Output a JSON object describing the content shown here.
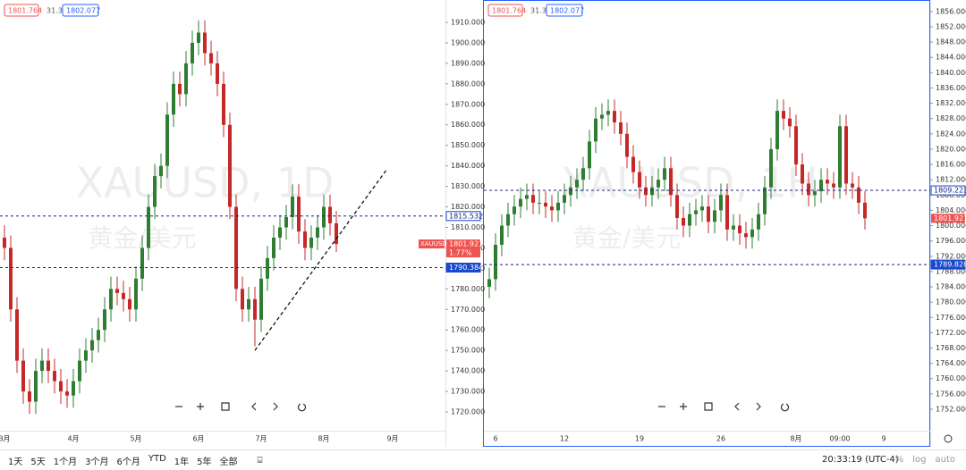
{
  "chart_data": [
    {
      "type": "candlestick",
      "title": "XAUUSD, 1D",
      "subtitle": "黄金/美元",
      "header_values": [
        1801.764,
        31.3,
        1802.077
      ],
      "symbol": "XAUUSD",
      "change": "1.77%",
      "last": 1801.921,
      "up_color": "#2e7d32",
      "down_color": "#c62828",
      "categories": [
        "3月",
        null,
        null,
        null,
        null,
        null,
        null,
        null,
        null,
        null,
        null,
        "4月",
        null,
        null,
        null,
        null,
        null,
        null,
        null,
        null,
        null,
        "5月",
        null,
        null,
        null,
        null,
        null,
        null,
        null,
        null,
        null,
        "6月",
        null,
        null,
        null,
        null,
        null,
        null,
        null,
        null,
        null,
        "7月",
        null,
        null,
        null,
        null,
        null,
        null,
        null,
        null,
        null,
        "8月",
        null,
        null,
        null,
        null,
        null,
        null,
        null,
        null,
        null,
        null,
        "9月",
        null
      ],
      "ohlc": [
        [
          1805,
          1811,
          1794,
          1800
        ],
        [
          1800,
          1806,
          1764,
          1770
        ],
        [
          1770,
          1776,
          1739,
          1745
        ],
        [
          1745,
          1751,
          1724,
          1730
        ],
        [
          1730,
          1736,
          1719,
          1725
        ],
        [
          1725,
          1746,
          1719,
          1740
        ],
        [
          1740,
          1751,
          1734,
          1745
        ],
        [
          1745,
          1751,
          1734,
          1740
        ],
        [
          1740,
          1746,
          1729,
          1735
        ],
        [
          1735,
          1741,
          1724,
          1730
        ],
        [
          1730,
          1736,
          1722,
          1728
        ],
        [
          1728,
          1741,
          1722,
          1735
        ],
        [
          1735,
          1751,
          1729,
          1745
        ],
        [
          1745,
          1756,
          1739,
          1750
        ],
        [
          1750,
          1761,
          1744,
          1755
        ],
        [
          1755,
          1766,
          1749,
          1760
        ],
        [
          1760,
          1776,
          1754,
          1770
        ],
        [
          1770,
          1786,
          1764,
          1780
        ],
        [
          1780,
          1786,
          1772,
          1778
        ],
        [
          1778,
          1784,
          1769,
          1775
        ],
        [
          1775,
          1781,
          1764,
          1770
        ],
        [
          1770,
          1791,
          1764,
          1785
        ],
        [
          1785,
          1806,
          1779,
          1800
        ],
        [
          1800,
          1826,
          1794,
          1820
        ],
        [
          1820,
          1841,
          1814,
          1835
        ],
        [
          1835,
          1846,
          1829,
          1840
        ],
        [
          1840,
          1871,
          1834,
          1865
        ],
        [
          1865,
          1886,
          1859,
          1880
        ],
        [
          1880,
          1886,
          1869,
          1875
        ],
        [
          1875,
          1896,
          1869,
          1890
        ],
        [
          1890,
          1906,
          1884,
          1900
        ],
        [
          1900,
          1911,
          1894,
          1905
        ],
        [
          1905,
          1911,
          1889,
          1895
        ],
        [
          1895,
          1901,
          1884,
          1890
        ],
        [
          1890,
          1896,
          1874,
          1880
        ],
        [
          1880,
          1886,
          1854,
          1860
        ],
        [
          1860,
          1866,
          1814,
          1820
        ],
        [
          1820,
          1826,
          1774,
          1780
        ],
        [
          1780,
          1786,
          1764,
          1770
        ],
        [
          1770,
          1781,
          1764,
          1775
        ],
        [
          1775,
          1781,
          1752,
          1765
        ],
        [
          1765,
          1791,
          1759,
          1785
        ],
        [
          1785,
          1801,
          1779,
          1795
        ],
        [
          1795,
          1811,
          1789,
          1805
        ],
        [
          1805,
          1816,
          1799,
          1810
        ],
        [
          1810,
          1821,
          1804,
          1815
        ],
        [
          1815,
          1831,
          1809,
          1825
        ],
        [
          1825,
          1831,
          1802,
          1808
        ],
        [
          1808,
          1814,
          1794,
          1800
        ],
        [
          1800,
          1811,
          1794,
          1805
        ],
        [
          1805,
          1816,
          1799,
          1810
        ],
        [
          1810,
          1826,
          1804,
          1820
        ],
        [
          1820,
          1826,
          1806,
          1812
        ],
        [
          1812,
          1818,
          1798,
          1801.921
        ],
        null,
        null,
        null,
        null,
        null,
        null,
        null,
        null,
        null,
        null
      ],
      "ylim": [
        1710.85,
        1920.9
      ],
      "yticks": [
        {
          "value": 1720,
          "label": "1720.000"
        },
        {
          "value": 1730,
          "label": "1730.000"
        },
        {
          "value": 1740,
          "label": "1740.000"
        },
        {
          "value": 1750,
          "label": "1750.000"
        },
        {
          "value": 1760,
          "label": "1760.000"
        },
        {
          "value": 1770,
          "label": "1770.000"
        },
        {
          "value": 1780,
          "label": "1780.000"
        },
        {
          "value": 1790,
          "label": "1790.000"
        },
        {
          "value": 1800,
          "label": "1800.000"
        },
        {
          "value": 1810,
          "label": "1810.000"
        },
        {
          "value": 1820,
          "label": "1820.000"
        },
        {
          "value": 1830,
          "label": "1830.000"
        },
        {
          "value": 1840,
          "label": "1840.000"
        },
        {
          "value": 1850,
          "label": "1850.000"
        },
        {
          "value": 1860,
          "label": "1860.000"
        },
        {
          "value": 1870,
          "label": "1870.000"
        },
        {
          "value": 1880,
          "label": "1880.000"
        },
        {
          "value": 1890,
          "label": "1890.000"
        },
        {
          "value": 1900,
          "label": "1900.000"
        },
        {
          "value": 1910,
          "label": "1910.000"
        }
      ],
      "levels": [
        1815.532,
        1790.384
      ],
      "trendline": [
        [
          40,
          1750
        ],
        [
          61,
          1838
        ]
      ]
    },
    {
      "type": "candlestick",
      "title": "XAUUSD, 1H",
      "subtitle": "黄金/美元",
      "header_values": [
        1801.764,
        31.3,
        1802.077
      ],
      "last": 1801.921,
      "up_color": "#2e7d32",
      "down_color": "#c62828",
      "categories": [
        null,
        "6",
        null,
        null,
        null,
        null,
        null,
        null,
        null,
        null,
        null,
        null,
        "12",
        null,
        null,
        null,
        null,
        null,
        null,
        null,
        null,
        null,
        null,
        null,
        "19",
        null,
        null,
        null,
        null,
        null,
        null,
        null,
        null,
        null,
        null,
        null,
        null,
        "26",
        null,
        null,
        null,
        null,
        null,
        null,
        null,
        null,
        null,
        null,
        null,
        "8月",
        null,
        null,
        null,
        null,
        null,
        null,
        "09:00",
        null,
        null,
        null,
        null,
        null,
        null,
        "9"
      ],
      "ohlc": [
        [
          1784,
          1789,
          1781,
          1786
        ],
        [
          1786,
          1798,
          1783,
          1795
        ],
        [
          1795,
          1803,
          1792,
          1800
        ],
        [
          1800,
          1806,
          1797,
          1803
        ],
        [
          1803,
          1808,
          1800,
          1805
        ],
        [
          1805,
          1810,
          1802,
          1807
        ],
        [
          1807,
          1811,
          1804,
          1808
        ],
        [
          1808,
          1811,
          1803,
          1806
        ],
        [
          1806,
          1809,
          1803,
          1806
        ],
        [
          1806,
          1809,
          1802,
          1805
        ],
        [
          1805,
          1808,
          1801,
          1804
        ],
        [
          1804,
          1809,
          1801,
          1806
        ],
        [
          1806,
          1811,
          1803,
          1808
        ],
        [
          1808,
          1813,
          1805,
          1810
        ],
        [
          1810,
          1815,
          1807,
          1812
        ],
        [
          1812,
          1818,
          1809,
          1815
        ],
        [
          1815,
          1825,
          1812,
          1822
        ],
        [
          1822,
          1831,
          1819,
          1828
        ],
        [
          1828,
          1832,
          1825,
          1829
        ],
        [
          1829,
          1833,
          1826,
          1830
        ],
        [
          1830,
          1833,
          1824,
          1827
        ],
        [
          1827,
          1830,
          1821,
          1824
        ],
        [
          1824,
          1827,
          1815,
          1818
        ],
        [
          1818,
          1821,
          1811,
          1814
        ],
        [
          1814,
          1817,
          1807,
          1810
        ],
        [
          1810,
          1813,
          1805,
          1808
        ],
        [
          1808,
          1813,
          1805,
          1810
        ],
        [
          1810,
          1815,
          1807,
          1812
        ],
        [
          1812,
          1818,
          1809,
          1815
        ],
        [
          1815,
          1818,
          1805,
          1808
        ],
        [
          1808,
          1811,
          1799,
          1802
        ],
        [
          1802,
          1805,
          1797,
          1800
        ],
        [
          1800,
          1806,
          1797,
          1803
        ],
        [
          1803,
          1807,
          1800,
          1804
        ],
        [
          1804,
          1808,
          1801,
          1805
        ],
        [
          1805,
          1808,
          1798,
          1801
        ],
        [
          1801,
          1807,
          1798,
          1804
        ],
        [
          1804,
          1811,
          1801,
          1808
        ],
        [
          1808,
          1811,
          1796,
          1799
        ],
        [
          1799,
          1803,
          1796,
          1800
        ],
        [
          1800,
          1803,
          1795,
          1798
        ],
        [
          1798,
          1801,
          1794,
          1797
        ],
        [
          1797,
          1802,
          1794,
          1799
        ],
        [
          1799,
          1806,
          1796,
          1803
        ],
        [
          1803,
          1813,
          1800,
          1810
        ],
        [
          1810,
          1823,
          1807,
          1820
        ],
        [
          1820,
          1833,
          1817,
          1830
        ],
        [
          1830,
          1833,
          1825,
          1828
        ],
        [
          1828,
          1831,
          1823,
          1826
        ],
        [
          1826,
          1829,
          1813,
          1816
        ],
        [
          1816,
          1819,
          1808,
          1811
        ],
        [
          1811,
          1814,
          1805,
          1808
        ],
        [
          1808,
          1812,
          1805,
          1809
        ],
        [
          1809,
          1815,
          1806,
          1812
        ],
        [
          1812,
          1815,
          1808,
          1811
        ],
        [
          1811,
          1814,
          1807,
          1810
        ],
        [
          1810,
          1829,
          1807,
          1826
        ],
        [
          1826,
          1829,
          1808,
          1811
        ],
        [
          1811,
          1814,
          1807,
          1810
        ],
        [
          1810,
          1813,
          1803,
          1806
        ],
        [
          1806,
          1809,
          1799,
          1801.921
        ],
        null,
        null,
        null
      ],
      "ylim": [
        1746.39,
        1859.0
      ],
      "yticks": [
        {
          "value": 1752,
          "label": "1752.000"
        },
        {
          "value": 1756,
          "label": "1756.000"
        },
        {
          "value": 1760,
          "label": "1760.000"
        },
        {
          "value": 1764,
          "label": "1764.000"
        },
        {
          "value": 1768,
          "label": "1768.000"
        },
        {
          "value": 1772,
          "label": "1772.000"
        },
        {
          "value": 1776,
          "label": "1776.000"
        },
        {
          "value": 1780,
          "label": "1780.000"
        },
        {
          "value": 1784,
          "label": "1784.000"
        },
        {
          "value": 1788,
          "label": "1788.000"
        },
        {
          "value": 1792,
          "label": "1792.000"
        },
        {
          "value": 1796,
          "label": "1796.000"
        },
        {
          "value": 1800,
          "label": "1800.000"
        },
        {
          "value": 1804,
          "label": "1804.000"
        },
        {
          "value": 1808,
          "label": "1808.000"
        },
        {
          "value": 1812,
          "label": "1812.000"
        },
        {
          "value": 1816,
          "label": "1816.000"
        },
        {
          "value": 1820,
          "label": "1820.000"
        },
        {
          "value": 1824,
          "label": "1824.000"
        },
        {
          "value": 1828,
          "label": "1828.000"
        },
        {
          "value": 1832,
          "label": "1832.000"
        },
        {
          "value": 1836,
          "label": "1836.000"
        },
        {
          "value": 1840,
          "label": "1840.000"
        },
        {
          "value": 1844,
          "label": "1844.000"
        },
        {
          "value": 1848,
          "label": "1848.000"
        },
        {
          "value": 1852,
          "label": "1852.000"
        },
        {
          "value": 1856,
          "label": "1856.000"
        }
      ],
      "levels": [
        1809.223,
        1789.828
      ]
    }
  ],
  "toolbar": {
    "ranges": [
      "1天",
      "5天",
      "1个月",
      "3个月",
      "6个月",
      "YTD",
      "1年",
      "5年",
      "全部"
    ],
    "time": "20:33:19 (UTC-4)",
    "options": [
      "%",
      "log",
      "auto"
    ]
  }
}
